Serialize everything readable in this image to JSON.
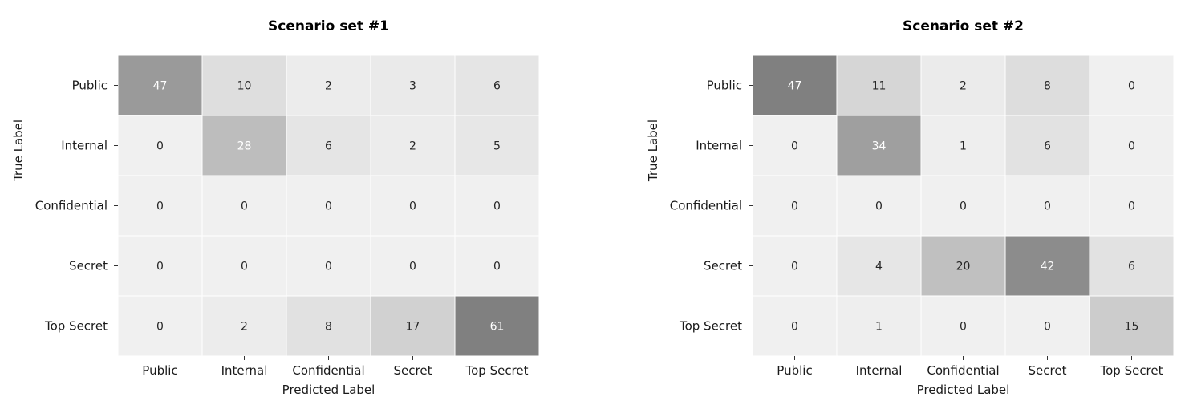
{
  "chart_data": [
    {
      "type": "heatmap",
      "title": "Scenario set #1",
      "xlabel": "Predicted Label",
      "ylabel": "True Label",
      "x_categories": [
        "Public",
        "Internal",
        "Confidential",
        "Secret",
        "Top Secret"
      ],
      "y_categories": [
        "Public",
        "Internal",
        "Confidential",
        "Secret",
        "Top Secret"
      ],
      "values": [
        [
          47,
          10,
          2,
          3,
          6
        ],
        [
          0,
          28,
          6,
          2,
          5
        ],
        [
          0,
          0,
          0,
          0,
          0
        ],
        [
          0,
          0,
          0,
          0,
          0
        ],
        [
          0,
          2,
          8,
          17,
          61
        ]
      ],
      "colormap": {
        "low": "#f0f0f0",
        "high": "#808080"
      },
      "colorbar": false
    },
    {
      "type": "heatmap",
      "title": "Scenario set #2",
      "xlabel": "Predicted Label",
      "ylabel": "True Label",
      "x_categories": [
        "Public",
        "Internal",
        "Confidential",
        "Secret",
        "Top Secret"
      ],
      "y_categories": [
        "Public",
        "Internal",
        "Confidential",
        "Secret",
        "Top Secret"
      ],
      "values": [
        [
          47,
          11,
          2,
          8,
          0
        ],
        [
          0,
          34,
          1,
          6,
          0
        ],
        [
          0,
          0,
          0,
          0,
          0
        ],
        [
          0,
          4,
          20,
          42,
          6
        ],
        [
          0,
          1,
          0,
          0,
          15
        ]
      ],
      "colormap": {
        "low": "#f0f0f0",
        "high": "#808080"
      },
      "colorbar": false
    }
  ]
}
